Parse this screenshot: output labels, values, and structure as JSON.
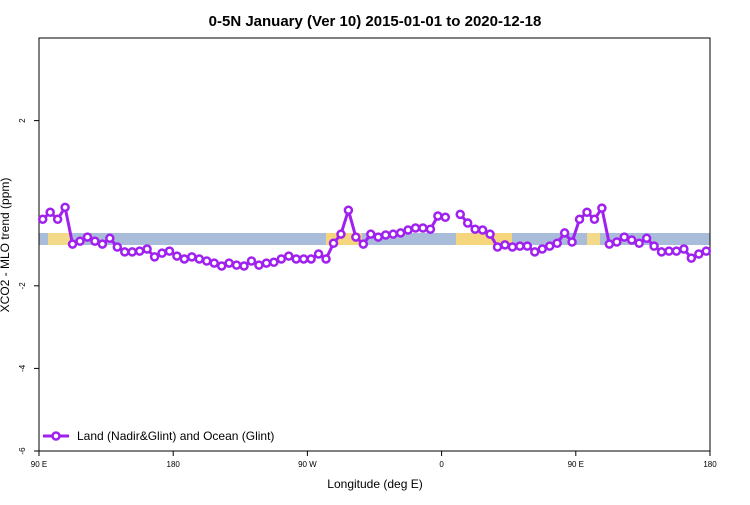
{
  "chart_data": {
    "type": "line",
    "title": "0-5N January (Ver 10)   2015-01-01 to 2020-12-18",
    "x_label": "Longitude (deg E)",
    "y_label": "XCO2 - MLO trend (ppm)",
    "x": [
      92.5,
      97.5,
      102.5,
      107.5,
      112.5,
      117.5,
      122.5,
      127.5,
      132.5,
      137.5,
      142.5,
      147.5,
      152.5,
      157.5,
      162.5,
      167.5,
      172.5,
      177.5,
      182.5,
      187.5,
      192.5,
      197.5,
      202.5,
      207.5,
      212.5,
      217.5,
      222.5,
      227.5,
      232.5,
      237.5,
      242.5,
      247.5,
      252.5,
      257.5,
      262.5,
      267.5,
      272.5,
      277.5,
      282.5,
      287.5,
      292.5,
      297.5,
      302.5,
      307.5,
      312.5,
      317.5,
      322.5,
      327.5,
      332.5,
      337.5,
      342.5,
      347.5,
      352.5,
      357.5,
      362.5,
      367.5,
      372.5,
      377.5,
      382.5,
      387.5,
      392.5,
      397.5,
      402.5,
      407.5,
      412.5,
      417.5,
      422.5,
      427.5,
      432.5,
      437.5,
      442.5,
      447.5,
      452.5,
      457.5,
      462.5,
      467.5,
      472.5,
      477.5,
      482.5,
      487.5,
      492.5,
      497.5,
      502.5,
      507.5,
      512.5,
      517.5,
      522.5,
      527.5,
      532.5,
      537.5
    ],
    "series": [
      {
        "name": "Land (Nadir&Glint) and Ocean (Glint)",
        "color": "#a020f0",
        "values": [
          -0.39,
          -0.22,
          -0.39,
          -0.1,
          -0.99,
          -0.92,
          -0.82,
          -0.92,
          -0.99,
          -0.85,
          -1.06,
          -1.18,
          -1.18,
          -1.16,
          -1.11,
          -1.3,
          -1.21,
          -1.16,
          -1.28,
          -1.35,
          -1.3,
          -1.35,
          -1.4,
          -1.45,
          -1.52,
          -1.45,
          -1.5,
          -1.52,
          -1.4,
          -1.5,
          -1.45,
          -1.43,
          -1.35,
          -1.28,
          -1.35,
          -1.35,
          -1.35,
          -1.23,
          -1.35,
          -0.97,
          -0.75,
          -0.17,
          -0.82,
          -0.99,
          -0.75,
          -0.82,
          -0.77,
          -0.75,
          -0.72,
          -0.65,
          -0.6,
          -0.6,
          -0.63,
          -0.31,
          -0.34,
          null,
          -0.27,
          -0.48,
          -0.63,
          -0.65,
          -0.75,
          -1.06,
          -1.01,
          -1.06,
          -1.04,
          -1.04,
          -1.18,
          -1.11,
          -1.04,
          -0.97,
          -0.72,
          -0.94,
          -0.39,
          -0.22,
          -0.39,
          -0.12,
          -0.99,
          -0.94,
          -0.82,
          -0.89,
          -0.97,
          -0.85,
          -1.04,
          -1.18,
          -1.16,
          -1.16,
          -1.11,
          -1.33,
          -1.23,
          -1.16
        ]
      }
    ],
    "xlim": [
      90,
      540
    ],
    "xticks": [
      {
        "value": 90,
        "label": "90 E"
      },
      180,
      {
        "value": 270,
        "label": "90 W"
      },
      {
        "value": 360,
        "label": "0"
      },
      {
        "value": 450,
        "label": "90 E"
      },
      {
        "value": 540,
        "label": "180"
      }
    ],
    "ylim": [
      -6,
      4
    ],
    "yticks": [
      -6,
      -4,
      -2,
      2
    ],
    "legend": "bottom-left"
  }
}
